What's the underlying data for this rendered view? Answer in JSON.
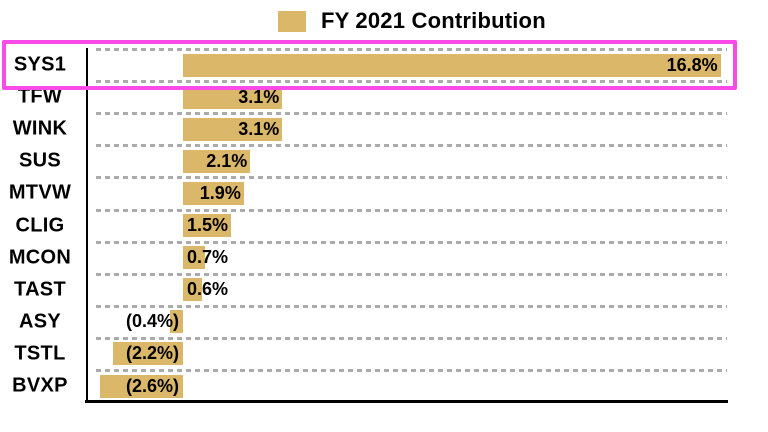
{
  "chart_data": {
    "type": "bar",
    "orientation": "horizontal",
    "title": "FY 2021 Contribution",
    "legend_position": "top",
    "categories": [
      "SYS1",
      "TFW",
      "WINK",
      "SUS",
      "MTVW",
      "CLIG",
      "MCON",
      "TAST",
      "ASY",
      "TSTL",
      "BVXP"
    ],
    "values": [
      16.8,
      3.1,
      3.1,
      2.1,
      1.9,
      1.5,
      0.7,
      0.6,
      -0.4,
      -2.2,
      -2.6
    ],
    "value_labels": [
      "16.8%",
      "3.1%",
      "3.1%",
      "2.1%",
      "1.9%",
      "1.5%",
      "0.7%",
      "0.6%",
      "(0.4%)",
      "(2.2%)",
      "(2.6%)"
    ],
    "series_name": "FY 2021 Contribution",
    "xlim": [
      -3,
      17
    ],
    "grid": "dashed-horizontal-row-separators",
    "highlighted_category": "SYS1",
    "colors": {
      "bar": "#DBB869",
      "highlight_box": "#FA4AE8",
      "grid": "#ABABAB",
      "axis": "#000000",
      "text": "#000000",
      "background": "#FFFFFF"
    }
  }
}
